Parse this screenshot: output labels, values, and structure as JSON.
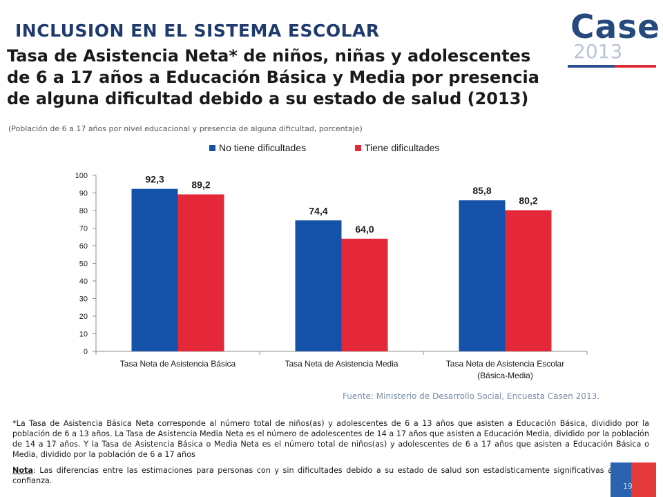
{
  "header": {
    "section_title": "INCLUSION EN EL SISTEMA ESCOLAR",
    "title": "Tasa de Asistencia Neta* de niños, niñas y adolescentes de 6 a 17 años a Educación Básica y Media por presencia de alguna dificultad debido a su estado de salud (2013)",
    "subtitle": "(Población de 6 a 17 años por nivel educacional y presencia de alguna dificultad, porcentaje)"
  },
  "logo": {
    "word": "Casen",
    "year": "2013"
  },
  "colors": {
    "series_1": "#1451a8",
    "series_2": "#e4283a",
    "title": "#1f3a6e"
  },
  "chart_data": {
    "type": "bar",
    "categories": [
      [
        "Tasa Neta de Asistencia Básica"
      ],
      [
        "Tasa Neta de Asistencia Media"
      ],
      [
        "Tasa Neta de Asistencia Escolar",
        "(Básica-Media)"
      ]
    ],
    "series": [
      {
        "name": "No tiene dificultades",
        "values": [
          92.3,
          74.4,
          85.8
        ],
        "labels": [
          "92,3",
          "74,4",
          "85,8"
        ]
      },
      {
        "name": "Tiene dificultades",
        "values": [
          89.2,
          64.0,
          80.2
        ],
        "labels": [
          "89,2",
          "64,0",
          "80,2"
        ]
      }
    ],
    "ylim": [
      0,
      100
    ],
    "yticks": [
      0,
      10,
      20,
      30,
      40,
      50,
      60,
      70,
      80,
      90,
      100
    ],
    "grid": false,
    "legend": "top"
  },
  "source": "Fuente: Ministerio de Desarrollo Social, Encuesta Casen 2013.",
  "footnote": "*La Tasa de Asistencia Básica Neta corresponde al número total de niños(as) y adolescentes de 6 a 13 años que asisten a Educación Básica, dividido por la población de 6 a 13 años. La Tasa de Asistencia Media Neta es el número de adolescentes de 14 a 17 años que asisten a Educación Media, dividido por la población de 14 a 17 años. Y la Tasa de Asistencia Básica o Media Neta es el número total de niños(as) y adolescentes de 6 a 17 años que asisten a Educación Básica o Media, dividido por la población de 6 a 17 años",
  "nota": {
    "label": "Nota",
    "text": ": Las diferencias entre las estimaciones para personas con y sin dificultades debido a su estado de salud son estadísticamente significativas al 95% de confianza."
  },
  "page_number": "19"
}
